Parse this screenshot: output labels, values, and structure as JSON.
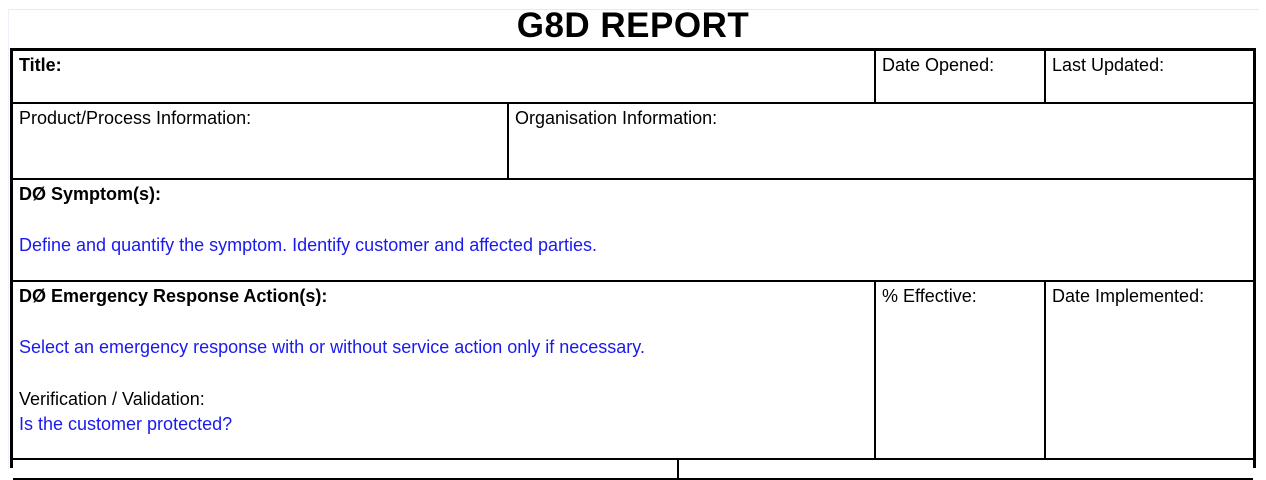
{
  "report_title": "G8D REPORT",
  "header_row": {
    "title_label": "Title:",
    "date_opened_label": "Date Opened:",
    "last_updated_label": "Last Updated:"
  },
  "info_row": {
    "product_label": "Product/Process Information:",
    "organisation_label": "Organisation Information:"
  },
  "symptom": {
    "label": "DØ Symptom(s):",
    "hint": "Define and quantify the symptom. Identify customer and affected parties."
  },
  "emergency": {
    "label": "DØ Emergency Response Action(s):",
    "hint": "Select an emergency response with or without service action only if necessary.",
    "verification_label": "Verification / Validation:",
    "verification_hint": "Is the customer protected?",
    "effective_label": "% Effective:",
    "date_implemented_label": "Date Implemented:"
  },
  "colors": {
    "hint_text": "#1a1aee",
    "border": "#000000"
  }
}
